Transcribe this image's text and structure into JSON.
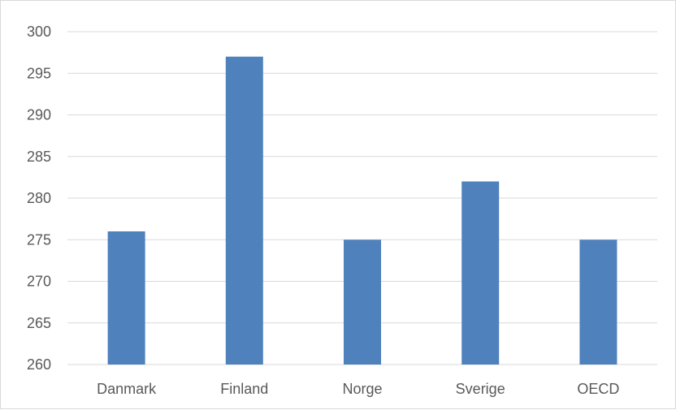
{
  "chart_data": {
    "type": "bar",
    "categories": [
      "Danmark",
      "Finland",
      "Norge",
      "Sverige",
      "OECD"
    ],
    "values": [
      276,
      297,
      275,
      282,
      275
    ],
    "title": "",
    "xlabel": "",
    "ylabel": "",
    "ylim": [
      260,
      300
    ],
    "yticks": [
      260,
      265,
      270,
      275,
      280,
      285,
      290,
      295,
      300
    ],
    "grid": true,
    "legend": "none",
    "bar_color": "#4f81bd"
  }
}
